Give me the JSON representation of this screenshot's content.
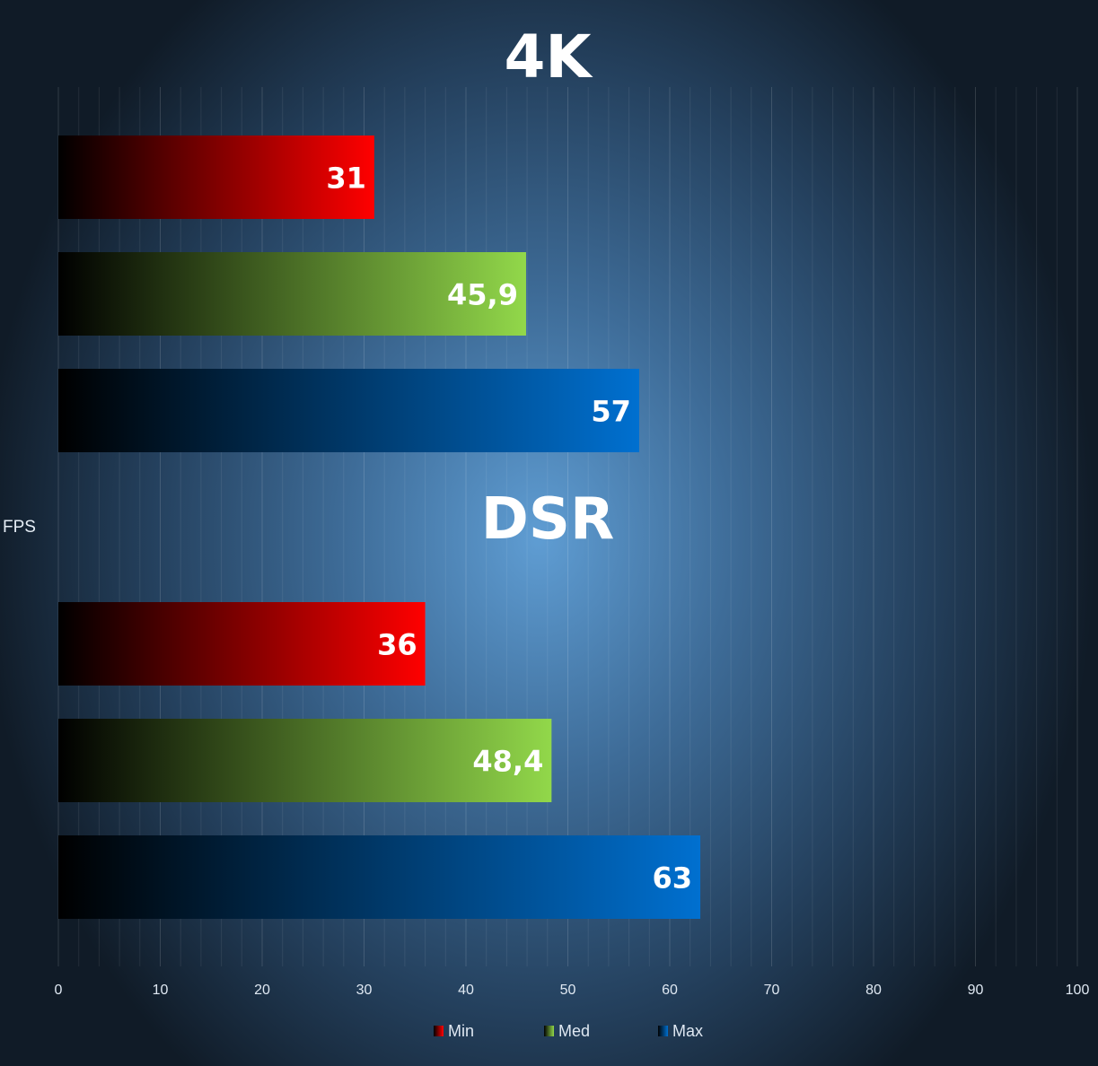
{
  "chart_data": {
    "type": "bar",
    "orientation": "horizontal",
    "ylabel": "FPS",
    "groups": [
      {
        "title": "4K",
        "values": {
          "Min": 31,
          "Med": 45.9,
          "Max": 57
        },
        "labels": {
          "Min": "31",
          "Med": "45,9",
          "Max": "57"
        }
      },
      {
        "title": "DSR",
        "values": {
          "Min": 36,
          "Med": 48.4,
          "Max": 63
        },
        "labels": {
          "Min": "36",
          "Med": "48,4",
          "Max": "63"
        }
      }
    ],
    "series": [
      {
        "name": "Min",
        "color": "#ff0000"
      },
      {
        "name": "Med",
        "color": "#92d84a"
      },
      {
        "name": "Max",
        "color": "#0070d0"
      }
    ],
    "xlim": [
      0,
      100
    ],
    "xticks": [
      0,
      10,
      20,
      30,
      40,
      50,
      60,
      70,
      80,
      90,
      100
    ],
    "minor_step": 2,
    "grid": true,
    "legend_position": "bottom"
  }
}
